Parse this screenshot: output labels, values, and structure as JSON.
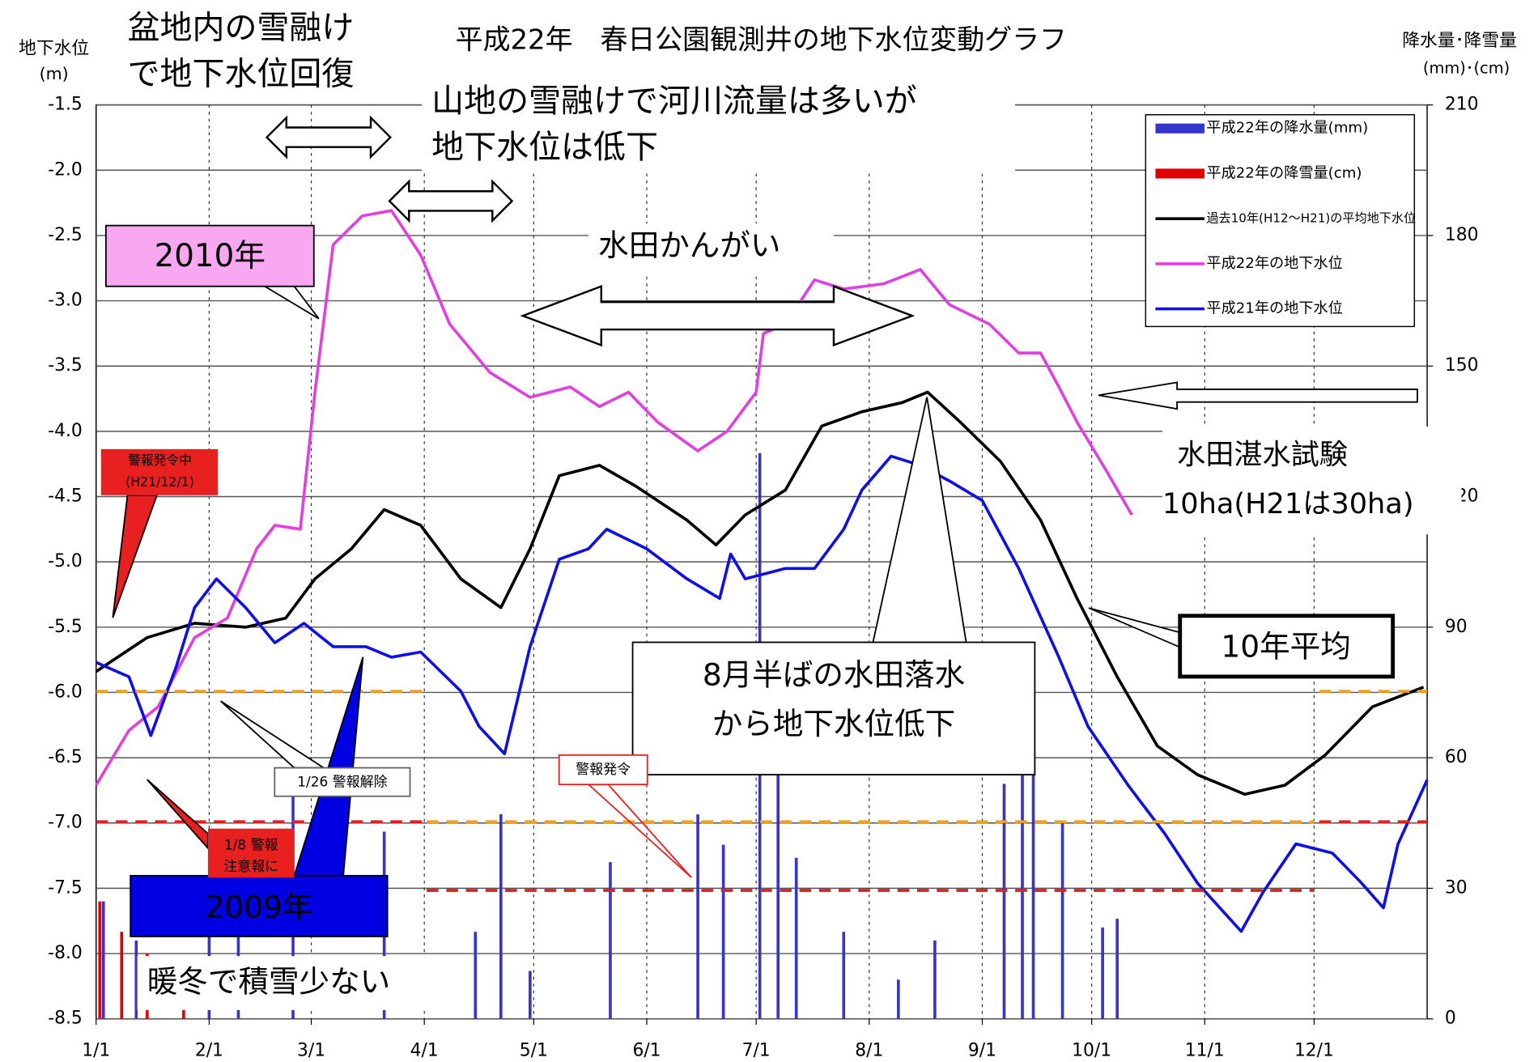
{
  "chart_data": {
    "type": "line",
    "title": "平成22年　春日公園観測井の地下水位変動グラフ",
    "ylabel": [
      "地下水位",
      "(m)"
    ],
    "y2label": [
      "降水量･降雪量",
      "(mm)･(cm)"
    ],
    "xlim": [
      1,
      366
    ],
    "xticks": [
      {
        "value": 1,
        "label": "1/1"
      },
      {
        "value": 32,
        "label": "2/1"
      },
      {
        "value": 60,
        "label": "3/1"
      },
      {
        "value": 91,
        "label": "4/1"
      },
      {
        "value": 121,
        "label": "5/1"
      },
      {
        "value": 152,
        "label": "6/1"
      },
      {
        "value": 182,
        "label": "7/1"
      },
      {
        "value": 213,
        "label": "8/1"
      },
      {
        "value": 244,
        "label": "9/1"
      },
      {
        "value": 274,
        "label": "10/1"
      },
      {
        "value": 305,
        "label": "11/1"
      },
      {
        "value": 335,
        "label": "12/1"
      }
    ],
    "ylim": [
      -1.5,
      -8.5
    ],
    "yticks": [
      -1.5,
      {
        "value": -2,
        "label": "-2.0"
      },
      -2.5,
      {
        "value": -3,
        "label": "-3.0"
      },
      -3.5,
      {
        "value": -4,
        "label": "-4.0"
      },
      -4.5,
      {
        "value": -5,
        "label": "-5.0"
      },
      -5.5,
      {
        "value": -6,
        "label": "-6.0"
      },
      -6.5,
      {
        "value": -7,
        "label": "-7.0"
      },
      -7.5,
      {
        "value": -8,
        "label": "-8.0"
      },
      -8.5
    ],
    "y2lim": [
      0,
      210
    ],
    "y2ticks": [
      0,
      30,
      60,
      90,
      120,
      150,
      180,
      210
    ],
    "grid": true,
    "legend": "upper right",
    "series": [
      {
        "name": "平成22年の降水量(mm)",
        "type": "bar",
        "axis": "y2",
        "color": "#3535c8",
        "x": [
          3,
          12,
          32,
          40,
          55,
          80,
          105,
          112,
          120,
          142,
          166,
          173,
          183,
          188,
          193,
          206,
          221,
          231,
          250,
          255,
          258,
          266,
          277,
          281
        ],
        "values": [
          27,
          18,
          27,
          20,
          52,
          43,
          20,
          47,
          11,
          36,
          47,
          40,
          130,
          58,
          37,
          20,
          9,
          18,
          54,
          58,
          67,
          45,
          21,
          23
        ]
      },
      {
        "name": "平成22年の降雪量(cm)",
        "type": "bar",
        "axis": "y2",
        "color": "#e00000",
        "x": [
          2,
          8,
          15,
          25
        ],
        "values": [
          27,
          20,
          15,
          10
        ]
      },
      {
        "name": "過去10年(H12～H21)の平均地下水位",
        "type": "line",
        "color": "#000000",
        "x": [
          1,
          15,
          28,
          42,
          53,
          61,
          71,
          80,
          90,
          101,
          112,
          120,
          128,
          139,
          149,
          163,
          171,
          179,
          190,
          200,
          211,
          222,
          229,
          238,
          249,
          260,
          270,
          281,
          292,
          303,
          316,
          327,
          338,
          351,
          365
        ],
        "values": [
          -5.84,
          -5.58,
          -5.47,
          -5.5,
          -5.43,
          -5.13,
          -4.9,
          -4.6,
          -4.72,
          -5.13,
          -5.35,
          -4.9,
          -4.34,
          -4.26,
          -4.42,
          -4.68,
          -4.87,
          -4.64,
          -4.45,
          -3.96,
          -3.85,
          -3.78,
          -3.7,
          -3.93,
          -4.23,
          -4.68,
          -5.28,
          -5.88,
          -6.41,
          -6.63,
          -6.78,
          -6.71,
          -6.48,
          -6.11,
          -5.96
        ]
      },
      {
        "name": "平成22年の地下水位",
        "type": "line",
        "color": "#e040e0",
        "x": [
          1,
          10,
          18,
          28,
          37,
          45,
          50,
          57,
          61,
          66,
          74,
          82,
          90,
          98,
          109,
          120,
          131,
          139,
          147,
          155,
          166,
          174,
          182,
          184,
          190,
          198,
          206,
          217,
          227,
          235,
          246,
          254,
          260,
          265,
          270,
          278,
          285
        ],
        "values": [
          -6.71,
          -6.29,
          -6.11,
          -5.58,
          -5.43,
          -4.9,
          -4.72,
          -4.75,
          -3.7,
          -2.57,
          -2.35,
          -2.31,
          -2.65,
          -3.18,
          -3.55,
          -3.74,
          -3.66,
          -3.81,
          -3.7,
          -3.93,
          -4.15,
          -4.0,
          -3.7,
          -3.25,
          -3.18,
          -2.84,
          -2.91,
          -2.87,
          -2.76,
          -3.03,
          -3.18,
          -3.4,
          -3.4,
          -3.66,
          -3.93,
          -4.3,
          -4.64
        ]
      },
      {
        "name": "平成21年の地下水位",
        "type": "line",
        "color": "#1010e0",
        "x": [
          1,
          10,
          16,
          23,
          28,
          34,
          42,
          50,
          58,
          66,
          75,
          82,
          90,
          101,
          106,
          113,
          120,
          128,
          136,
          141,
          152,
          163,
          172,
          175,
          179,
          190,
          198,
          206,
          211,
          219,
          227,
          235,
          244,
          254,
          265,
          273,
          284,
          294,
          303,
          315,
          321,
          330,
          340,
          348,
          354,
          358,
          366
        ],
        "values": [
          -5.77,
          -5.88,
          -6.33,
          -5.8,
          -5.35,
          -5.13,
          -5.35,
          -5.62,
          -5.47,
          -5.65,
          -5.65,
          -5.73,
          -5.69,
          -5.99,
          -6.26,
          -6.47,
          -5.65,
          -4.98,
          -4.9,
          -4.75,
          -4.9,
          -5.13,
          -5.28,
          -4.94,
          -5.13,
          -5.05,
          -5.05,
          -4.75,
          -4.45,
          -4.19,
          -4.26,
          -4.38,
          -4.53,
          -5.05,
          -5.73,
          -6.26,
          -6.71,
          -7.08,
          -7.46,
          -7.83,
          -7.53,
          -7.16,
          -7.23,
          -7.46,
          -7.65,
          -7.16,
          -6.67
        ]
      }
    ],
    "annotations": [
      [
        "盆地内の雪融け",
        "で地下水位回復"
      ],
      [
        "山地の雪融けで河川流量は多いが",
        "地下水位は低下"
      ],
      [
        "2010年"
      ],
      [
        "水田かんがい"
      ],
      [
        "水田湛水試験",
        "10ha(H21は30ha)"
      ],
      [
        "10年平均"
      ],
      [
        "8月半ばの水田落水",
        "から地下水位低下"
      ],
      [
        "2009年"
      ],
      [
        "暖冬で積雪少ない"
      ],
      [
        "警報発令中",
        "(H21/12/1)"
      ],
      [
        "1/26 警報解除"
      ],
      [
        "1/8 警報",
        "注意報に"
      ],
      [
        "警報発令"
      ]
    ]
  }
}
